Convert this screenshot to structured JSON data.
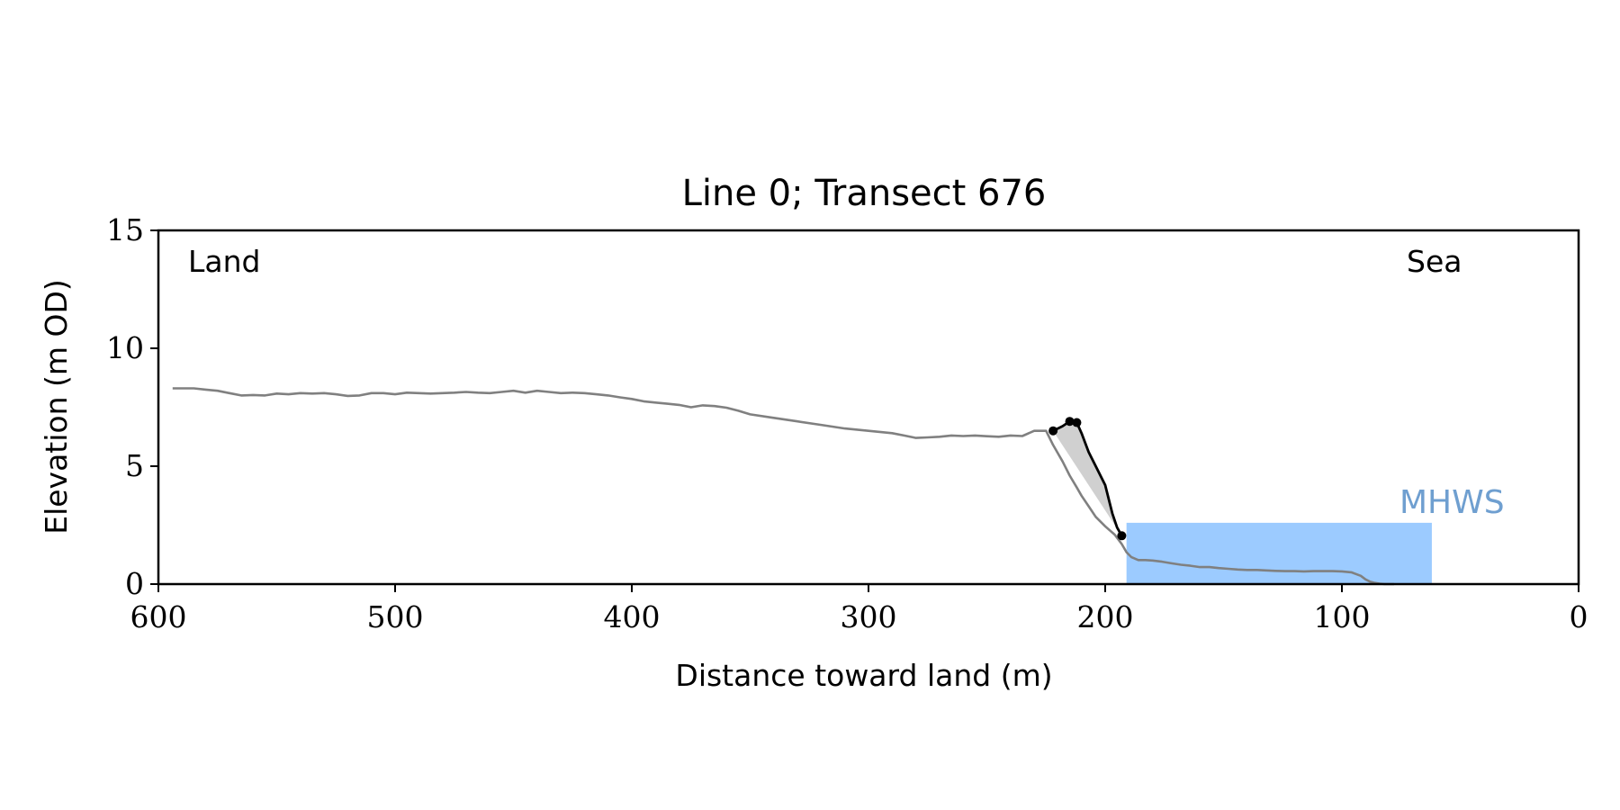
{
  "chart_data": {
    "type": "line",
    "title": "Line 0; Transect 676",
    "xlabel": "Distance toward land (m)",
    "ylabel": "Elevation (m OD)",
    "xlim": [
      600,
      0
    ],
    "ylim": [
      0,
      15
    ],
    "x_ticks": [
      600,
      500,
      400,
      300,
      200,
      100,
      0
    ],
    "y_ticks": [
      0,
      5,
      10,
      15
    ],
    "grid": false,
    "annotations": {
      "land": "Land",
      "sea": "Sea",
      "mhws": "MHWS"
    },
    "mhws": {
      "level": 2.6,
      "x_start": 191,
      "x_end": 62,
      "color": "#9ccbff",
      "label_color": "#6f9fd0"
    },
    "colors": {
      "profile": "#808080",
      "cliff": "#000000",
      "cliff_fill": "#d0d0d0"
    },
    "profile": {
      "x": [
        594,
        590,
        585,
        580,
        575,
        570,
        565,
        560,
        555,
        550,
        545,
        540,
        535,
        530,
        525,
        520,
        515,
        510,
        505,
        500,
        495,
        490,
        485,
        480,
        475,
        470,
        465,
        460,
        455,
        450,
        445,
        440,
        435,
        430,
        425,
        420,
        415,
        410,
        405,
        400,
        395,
        390,
        385,
        380,
        375,
        370,
        365,
        360,
        355,
        350,
        340,
        330,
        320,
        310,
        300,
        290,
        285,
        280,
        275,
        270,
        265,
        260,
        255,
        250,
        245,
        240,
        235,
        230,
        225,
        222,
        218,
        215,
        212,
        210,
        207,
        204,
        200,
        196,
        193,
        191,
        189,
        186,
        183,
        180,
        176,
        172,
        168,
        164,
        160,
        156,
        152,
        148,
        144,
        140,
        136,
        132,
        128,
        124,
        120,
        116,
        112,
        108,
        104,
        100,
        96,
        92,
        90,
        88,
        86,
        84,
        82,
        80,
        78
      ],
      "y": [
        8.3,
        8.3,
        8.3,
        8.25,
        8.2,
        8.1,
        8.0,
        8.02,
        8.0,
        8.08,
        8.05,
        8.1,
        8.08,
        8.1,
        8.05,
        7.98,
        8.0,
        8.1,
        8.1,
        8.05,
        8.12,
        8.1,
        8.08,
        8.1,
        8.12,
        8.15,
        8.12,
        8.1,
        8.15,
        8.2,
        8.12,
        8.2,
        8.15,
        8.1,
        8.12,
        8.1,
        8.05,
        8.0,
        7.92,
        7.85,
        7.75,
        7.7,
        7.65,
        7.6,
        7.5,
        7.58,
        7.55,
        7.48,
        7.35,
        7.2,
        7.05,
        6.9,
        6.75,
        6.6,
        6.5,
        6.4,
        6.3,
        6.2,
        6.22,
        6.25,
        6.3,
        6.28,
        6.3,
        6.27,
        6.25,
        6.3,
        6.28,
        6.5,
        6.5,
        5.9,
        5.2,
        4.6,
        4.1,
        3.75,
        3.3,
        2.85,
        2.45,
        2.1,
        1.7,
        1.35,
        1.15,
        1.02,
        1.02,
        1.0,
        0.95,
        0.88,
        0.82,
        0.78,
        0.72,
        0.72,
        0.68,
        0.65,
        0.62,
        0.6,
        0.6,
        0.58,
        0.56,
        0.55,
        0.55,
        0.54,
        0.55,
        0.55,
        0.55,
        0.54,
        0.5,
        0.35,
        0.2,
        0.1,
        0.05,
        0.02,
        0.0,
        0.0,
        0.0
      ]
    },
    "cliff": {
      "x": [
        222,
        218,
        215,
        212,
        210,
        207,
        204,
        200,
        197,
        195,
        193
      ],
      "y": [
        6.5,
        6.7,
        6.9,
        6.85,
        6.4,
        5.6,
        5.0,
        4.2,
        3.0,
        2.4,
        2.05
      ]
    },
    "cliff_points": {
      "x": [
        222,
        215,
        212,
        193
      ],
      "y": [
        6.5,
        6.9,
        6.85,
        2.05
      ]
    }
  }
}
